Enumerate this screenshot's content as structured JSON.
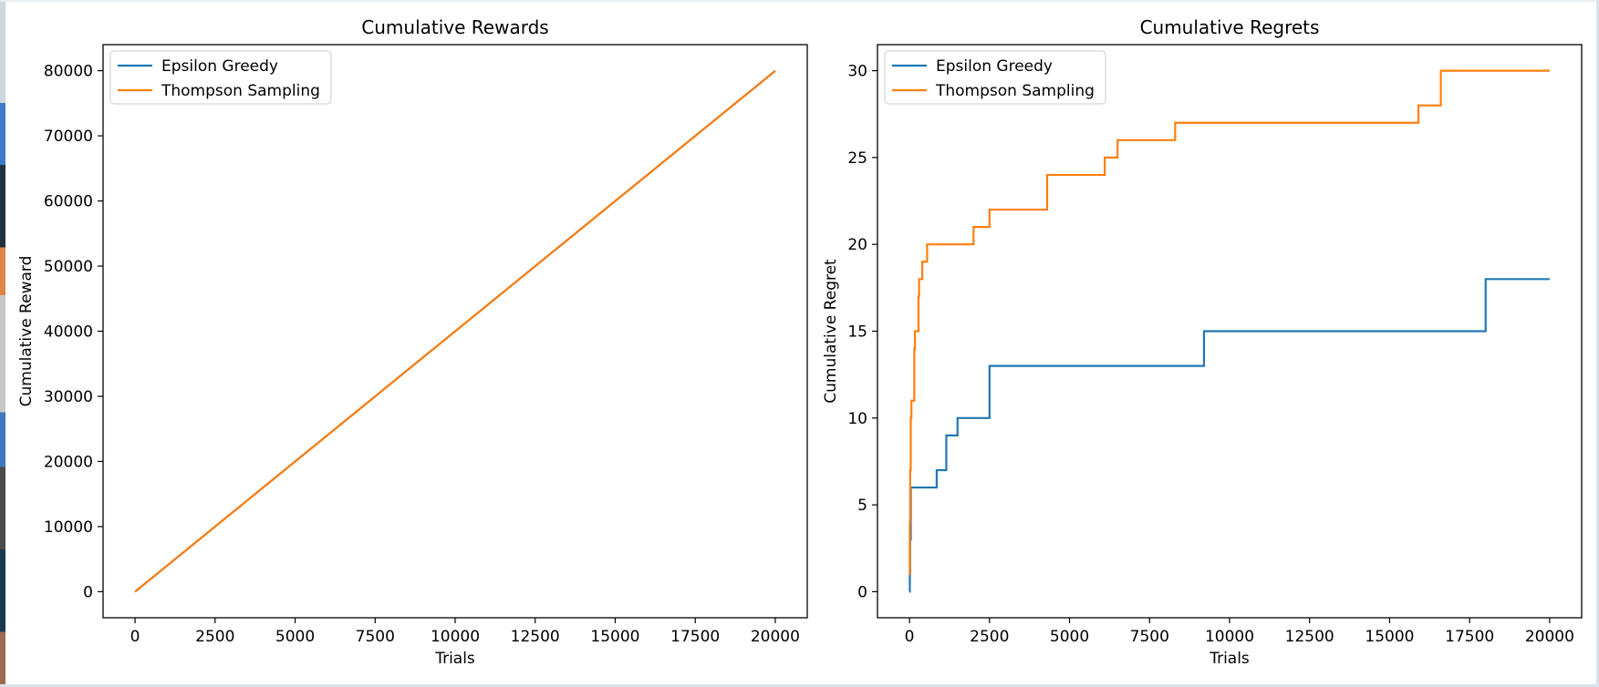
{
  "chart_data": [
    {
      "type": "line",
      "title": "Cumulative Rewards",
      "xlabel": "Trials",
      "ylabel": "Cumulative Reward",
      "xlim": [
        -1000,
        21000
      ],
      "ylim": [
        -4000,
        84000
      ],
      "xticks": [
        0,
        2500,
        5000,
        7500,
        10000,
        12500,
        15000,
        17500,
        20000
      ],
      "yticks": [
        0,
        10000,
        20000,
        30000,
        40000,
        50000,
        60000,
        70000,
        80000
      ],
      "xtick_labels": [
        "0",
        "2500",
        "5000",
        "7500",
        "10000",
        "12500",
        "15000",
        "17500",
        "20000"
      ],
      "ytick_labels": [
        "0",
        "10000",
        "20000",
        "30000",
        "40000",
        "50000",
        "60000",
        "70000",
        "80000"
      ],
      "legend_position": "top-left",
      "series": [
        {
          "name": "Epsilon Greedy",
          "color": "#1f77b4",
          "step": false,
          "points": [
            [
              0,
              0
            ],
            [
              20000,
              79982
            ]
          ]
        },
        {
          "name": "Thompson Sampling",
          "color": "#ff7f0e",
          "step": false,
          "points": [
            [
              0,
              0
            ],
            [
              20000,
              79970
            ]
          ]
        }
      ]
    },
    {
      "type": "line",
      "title": "Cumulative Regrets",
      "xlabel": "Trials",
      "ylabel": "Cumulative Regret",
      "xlim": [
        -1000,
        21000
      ],
      "ylim": [
        -1.5,
        31.5
      ],
      "xticks": [
        0,
        2500,
        5000,
        7500,
        10000,
        12500,
        15000,
        17500,
        20000
      ],
      "yticks": [
        0,
        5,
        10,
        15,
        20,
        25,
        30
      ],
      "xtick_labels": [
        "0",
        "2500",
        "5000",
        "7500",
        "10000",
        "12500",
        "15000",
        "17500",
        "20000"
      ],
      "ytick_labels": [
        "0",
        "5",
        "10",
        "15",
        "20",
        "25",
        "30"
      ],
      "legend_position": "top-left",
      "series": [
        {
          "name": "Epsilon Greedy",
          "color": "#1f77b4",
          "step": true,
          "points": [
            [
              0,
              0
            ],
            [
              10,
              1
            ],
            [
              20,
              3
            ],
            [
              40,
              6
            ],
            [
              850,
              7
            ],
            [
              1150,
              9
            ],
            [
              1500,
              10
            ],
            [
              2500,
              13
            ],
            [
              9200,
              15
            ],
            [
              18000,
              18
            ],
            [
              20000,
              18
            ]
          ]
        },
        {
          "name": "Thompson Sampling",
          "color": "#ff7f0e",
          "step": true,
          "points": [
            [
              0,
              1
            ],
            [
              10,
              4
            ],
            [
              20,
              7
            ],
            [
              40,
              10
            ],
            [
              60,
              11
            ],
            [
              150,
              14
            ],
            [
              170,
              15
            ],
            [
              280,
              17
            ],
            [
              300,
              18
            ],
            [
              400,
              19
            ],
            [
              550,
              20
            ],
            [
              2000,
              21
            ],
            [
              2500,
              22
            ],
            [
              4300,
              24
            ],
            [
              6100,
              25
            ],
            [
              6500,
              26
            ],
            [
              8300,
              27
            ],
            [
              15900,
              28
            ],
            [
              16600,
              30
            ],
            [
              20000,
              30
            ]
          ]
        }
      ]
    }
  ]
}
